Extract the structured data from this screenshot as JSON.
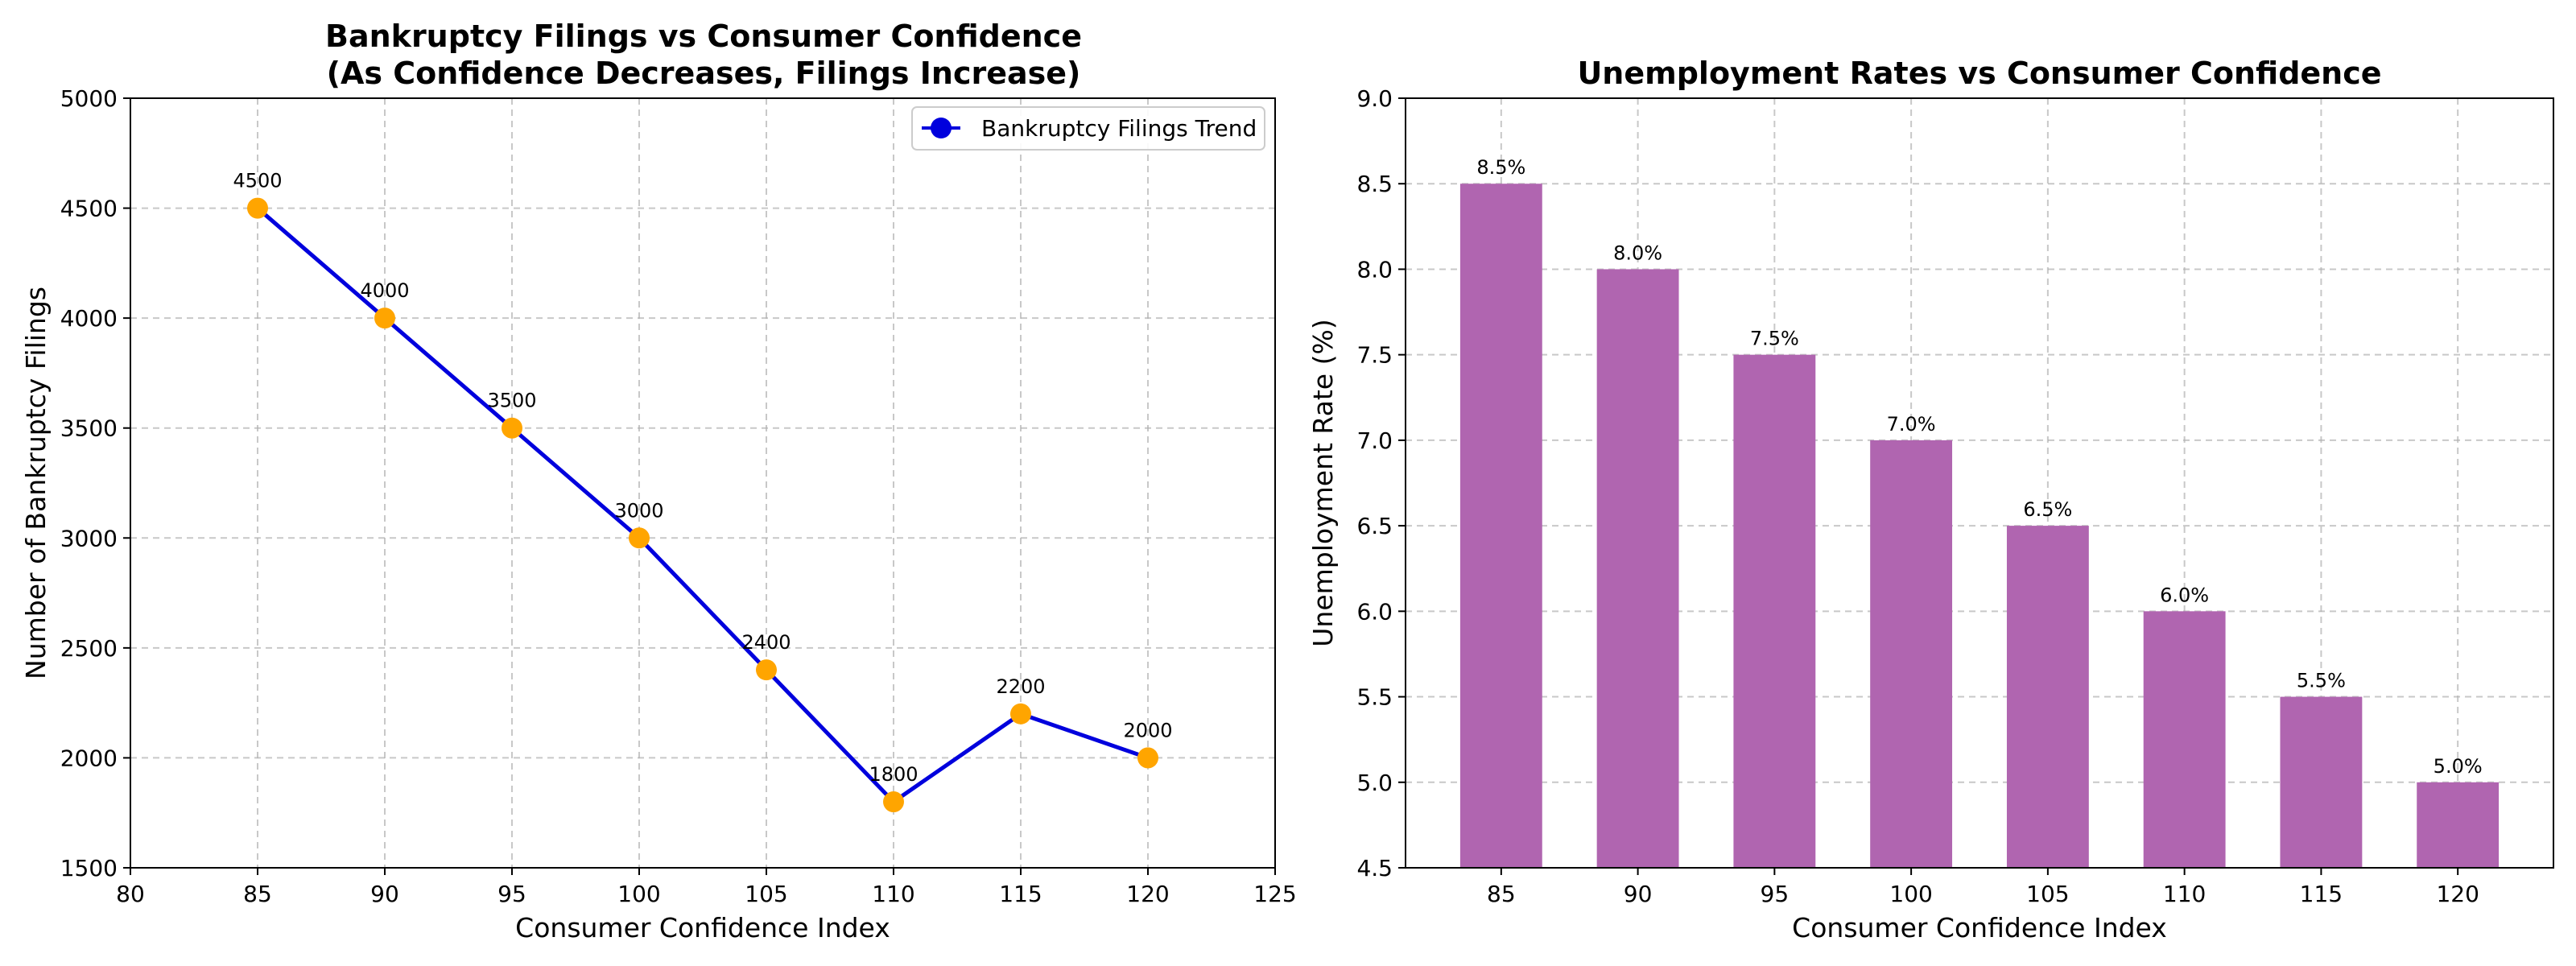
{
  "chart_data": [
    {
      "type": "line",
      "title": "Bankruptcy Filings vs Consumer Confidence",
      "subtitle": "(As Confidence Decreases, Filings Increase)",
      "xlabel": "Consumer Confidence Index",
      "ylabel": "Number of Bankruptcy Filings",
      "x": [
        85,
        90,
        95,
        100,
        105,
        110,
        115,
        120
      ],
      "series": [
        {
          "name": "Bankruptcy Filings Trend",
          "values": [
            4500,
            4000,
            3500,
            3000,
            2400,
            1800,
            2200,
            2000
          ]
        }
      ],
      "data_labels": [
        "4500",
        "4000",
        "3500",
        "3000",
        "2400",
        "1800",
        "2200",
        "2000"
      ],
      "xlim": [
        80,
        125
      ],
      "ylim": [
        1500,
        5000
      ],
      "xticks": [
        "80",
        "85",
        "90",
        "95",
        "100",
        "105",
        "110",
        "115",
        "120",
        "125"
      ],
      "yticks": [
        "1500",
        "2000",
        "2500",
        "3000",
        "3500",
        "4000",
        "4500",
        "5000"
      ],
      "grid": true,
      "legend_position": "top-right",
      "line_color": "#0000dd",
      "marker_color": "#ffa500"
    },
    {
      "type": "bar",
      "title": "Unemployment Rates vs Consumer Confidence",
      "xlabel": "Consumer Confidence Index",
      "ylabel": "Unemployment Rate (%)",
      "categories": [
        "85",
        "90",
        "95",
        "100",
        "105",
        "110",
        "115",
        "120"
      ],
      "values": [
        8.5,
        8.0,
        7.5,
        7.0,
        6.5,
        6.0,
        5.5,
        5.0
      ],
      "data_labels": [
        "8.5%",
        "8.0%",
        "7.5%",
        "7.0%",
        "6.5%",
        "6.0%",
        "5.5%",
        "5.0%"
      ],
      "ylim": [
        4.5,
        9.0
      ],
      "yticks": [
        "4.5",
        "5.0",
        "5.5",
        "6.0",
        "6.5",
        "7.0",
        "7.5",
        "8.0",
        "8.5",
        "9.0"
      ],
      "grid": true,
      "bar_color": "#b065b0"
    }
  ]
}
